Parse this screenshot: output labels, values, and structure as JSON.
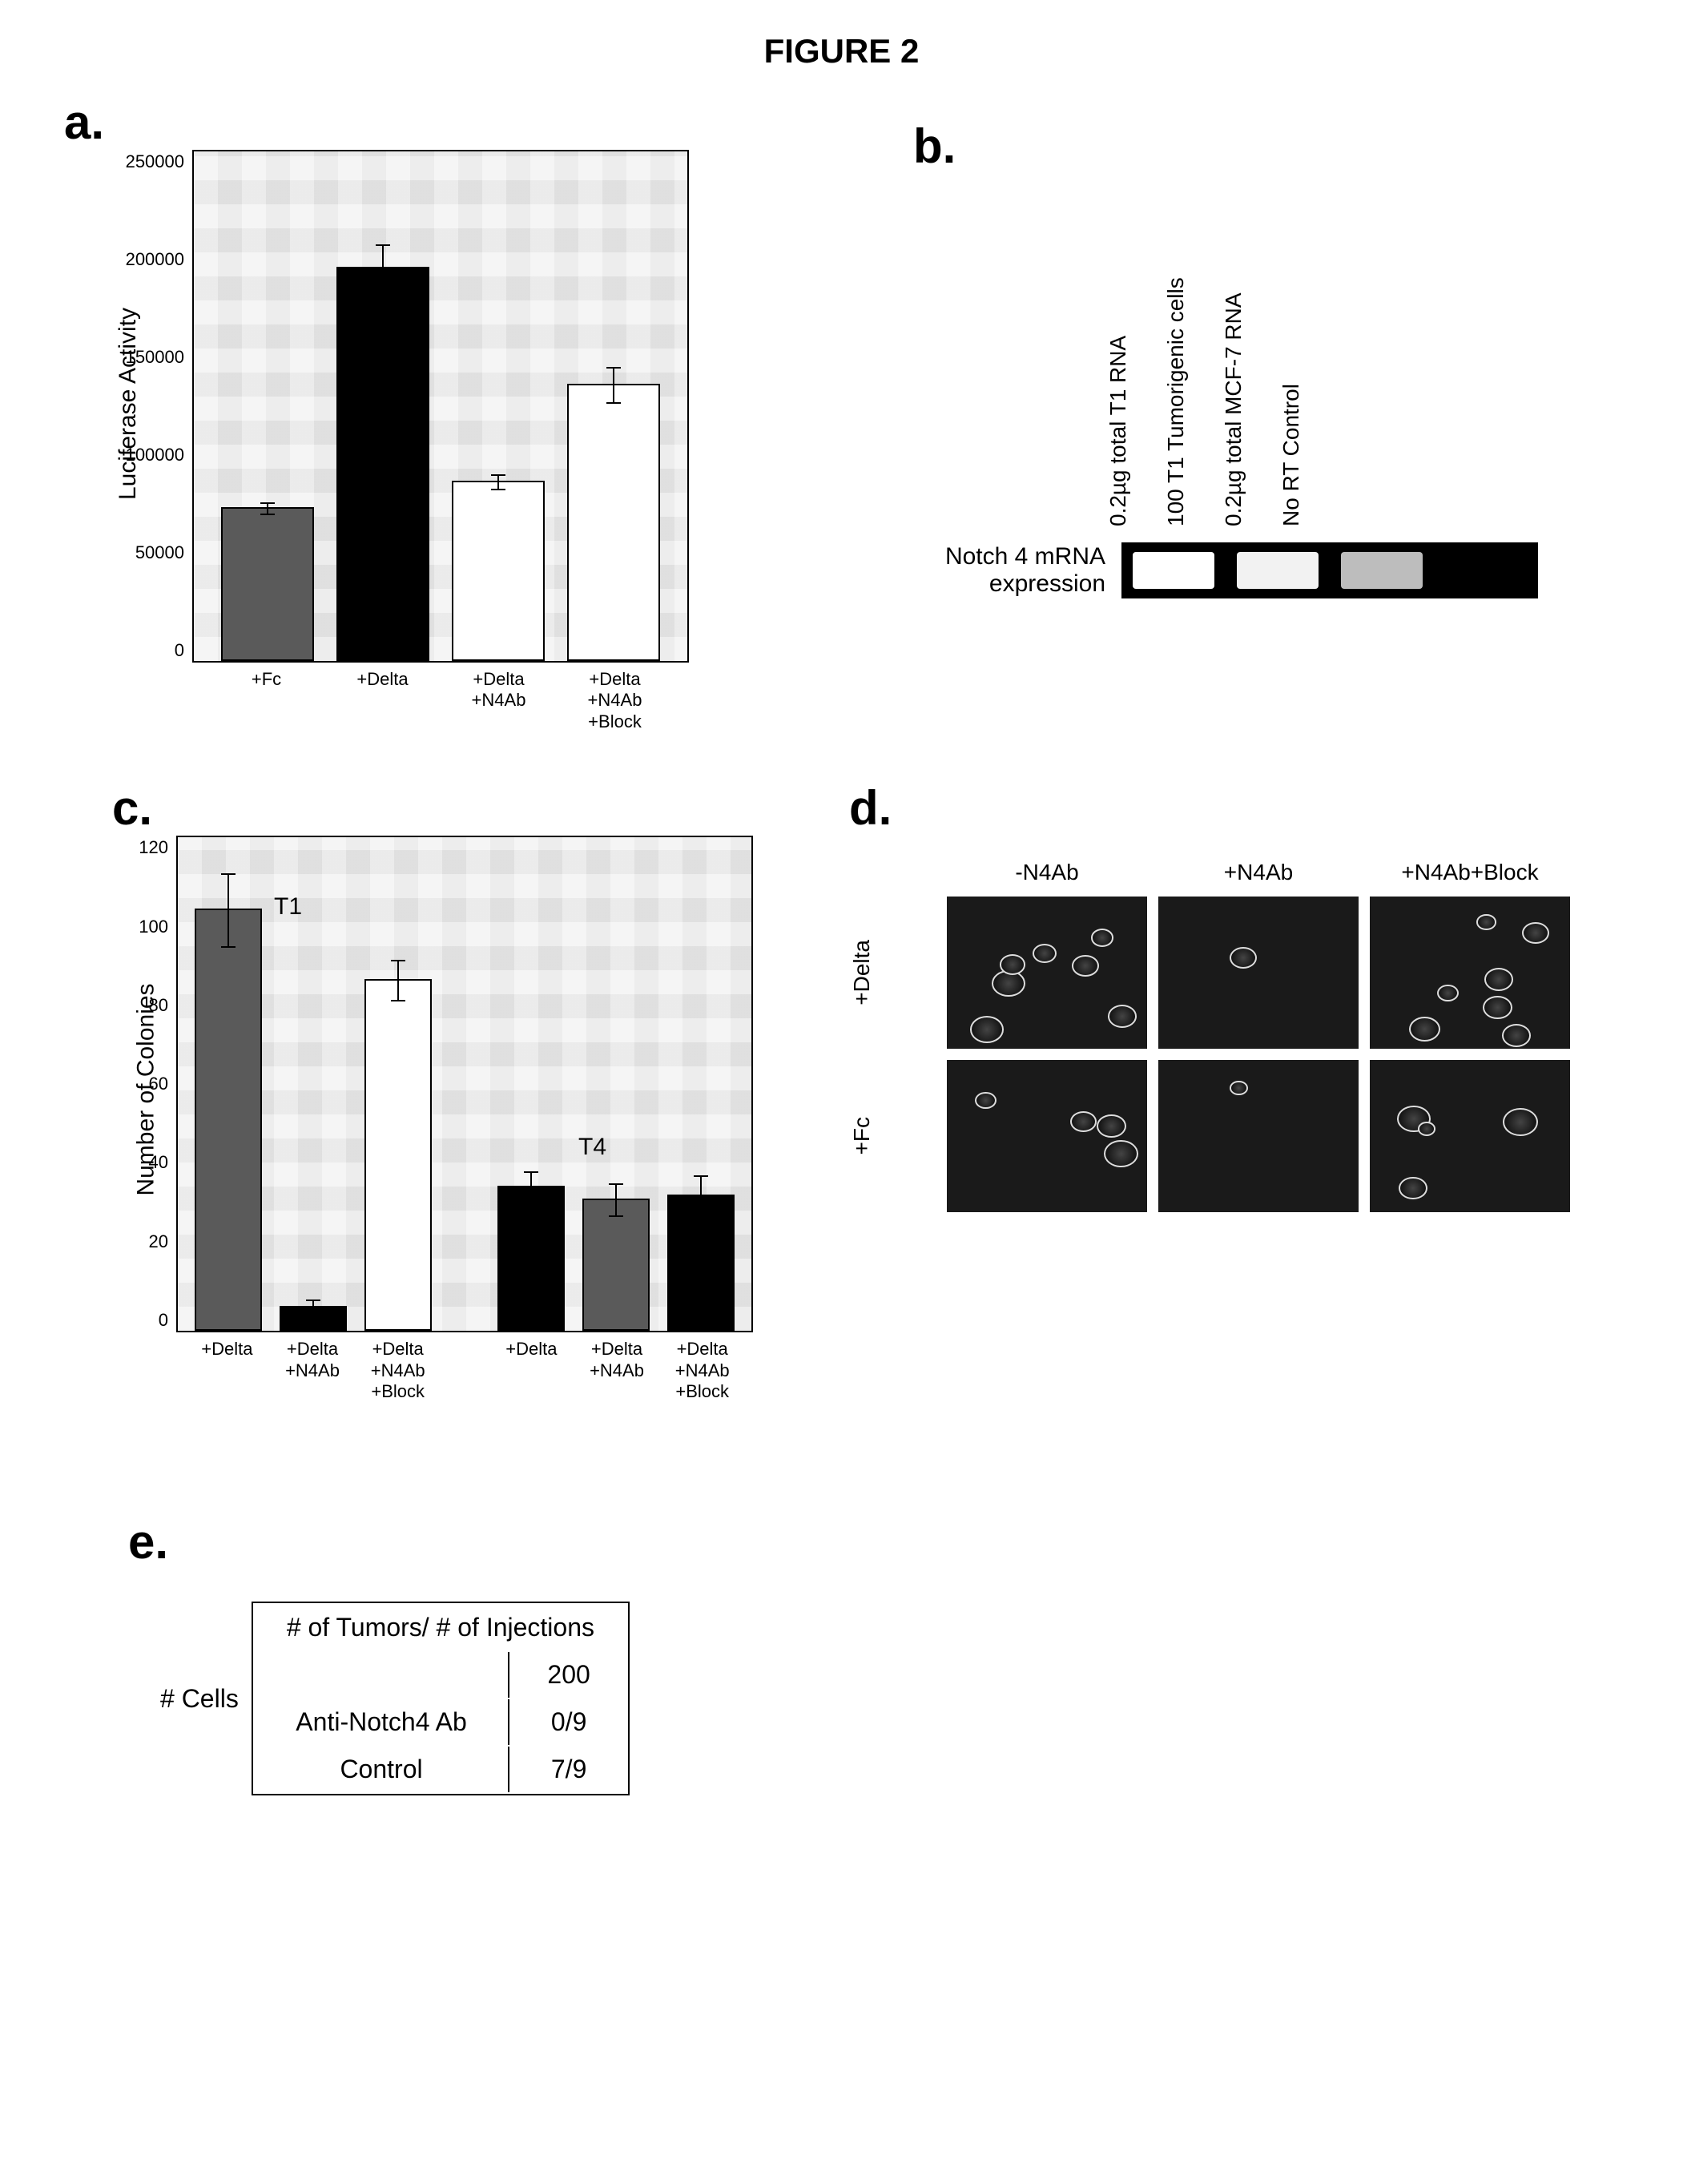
{
  "figure_title": "FIGURE 2",
  "panel_a": {
    "label": "a.",
    "type": "bar",
    "ylabel": "Luciferase Activity",
    "ylim": [
      0,
      250000
    ],
    "yticks": [
      0,
      50000,
      100000,
      150000,
      200000,
      250000
    ],
    "plot_bg": "#e8e8e8",
    "categories": [
      "+Fc",
      "+Delta",
      "+Delta\n+N4Ab",
      "+Delta\n+N4Ab\n+Block"
    ],
    "values": [
      75000,
      192000,
      88000,
      135000
    ],
    "errors": [
      3000,
      12000,
      4000,
      9000
    ],
    "bar_colors": [
      "#5a5a5a",
      "#000000",
      "#ffffff",
      "#ffffff"
    ],
    "label_fontsize": 30,
    "tick_fontsize": 22
  },
  "panel_b": {
    "label": "b.",
    "title": "Notch 4 mRNA\nexpression",
    "lanes": [
      {
        "label": "0.2µg total T1 RNA",
        "intensity": "#ffffff"
      },
      {
        "label": "100 T1 Tumorigenic cells",
        "intensity": "#f2f2f2"
      },
      {
        "label": "0.2µg total MCF-7 RNA",
        "intensity": "#bdbdbd"
      },
      {
        "label": "No RT Control",
        "intensity": "#000000"
      }
    ],
    "strip_bg": "#000000"
  },
  "panel_c": {
    "label": "c.",
    "type": "grouped-bar",
    "ylabel": "Number of Colonies",
    "ylim": [
      0,
      120
    ],
    "yticks": [
      0,
      20,
      40,
      60,
      80,
      100,
      120
    ],
    "plot_bg": "#e8e8e8",
    "groups": [
      {
        "name": "T1",
        "categories": [
          "+Delta",
          "+Delta\n+N4Ab",
          "+Delta\n+N4Ab\n+Block"
        ],
        "values": [
          102,
          6,
          85
        ],
        "errors": [
          9,
          2,
          5
        ],
        "bar_colors": [
          "#5a5a5a",
          "#000000",
          "#ffffff"
        ]
      },
      {
        "name": "T4",
        "categories": [
          "+Delta",
          "+Delta\n+N4Ab",
          "+Delta\n+N4Ab\n+Block"
        ],
        "values": [
          35,
          32,
          33
        ],
        "errors": [
          4,
          4,
          5
        ],
        "bar_colors": [
          "#000000",
          "#5a5a5a",
          "#000000"
        ]
      }
    ]
  },
  "panel_d": {
    "label": "d.",
    "col_headers": [
      "-N4Ab",
      "+N4Ab",
      "+N4Ab+Block"
    ],
    "row_headers": [
      "+Delta",
      "+Fc"
    ],
    "colony_density": [
      [
        "many",
        "few",
        "many"
      ],
      [
        "some",
        "few",
        "some"
      ]
    ],
    "bg_color": "#1a1a1a"
  },
  "panel_e": {
    "label": "e.",
    "side_label": "# Cells",
    "header": "#  of Tumors/ # of Injections",
    "col2_header": "200",
    "rows": [
      {
        "label": "Anti-Notch4 Ab",
        "value": "0/9"
      },
      {
        "label": "Control",
        "value": "7/9"
      }
    ]
  }
}
